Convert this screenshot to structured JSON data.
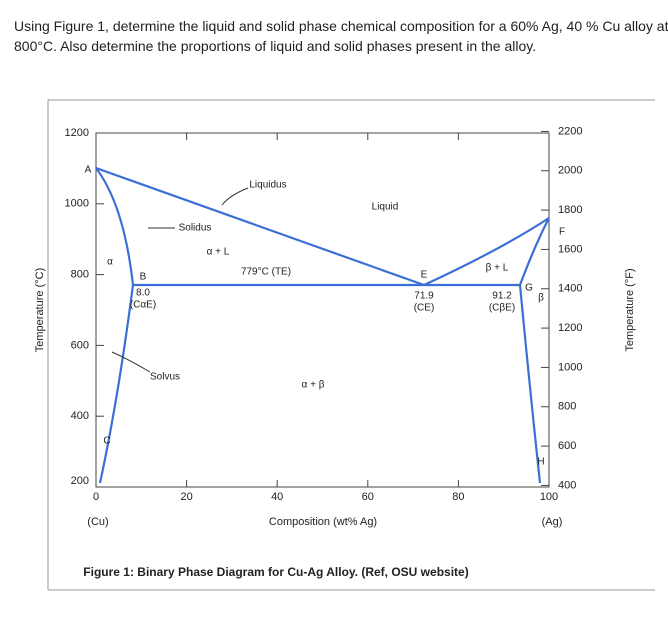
{
  "question": [
    "Using Figure 1, determine the liquid and solid phase chemical composition for a 60% Ag, 40 % Cu alloy at",
    "800°C. Also determine the proportions of liquid and solid phases present in the alloy."
  ],
  "figure": {
    "y_axis_label": "Temperature (°C)",
    "y2_axis_label": "Temperature (°F)",
    "x_axis_label": "Composition (wt% Ag)",
    "x_left_label": "(Cu)",
    "x_right_label": "(Ag)",
    "xticks": [
      0,
      20,
      40,
      60,
      80,
      100
    ],
    "yticks": [
      200,
      400,
      600,
      800,
      1000,
      1200
    ],
    "y2ticks": [
      400,
      600,
      800,
      1000,
      1200,
      1400,
      1600,
      1800,
      2000,
      2200
    ],
    "annotations": [
      "A",
      "Liquidus",
      "Liquid",
      "Solidus",
      "α + L",
      "α",
      "779°C (TE)",
      "B",
      "8.0",
      "(CαE)",
      "E",
      "71.9",
      "(CE)",
      "β + L",
      "F",
      "G",
      "β",
      "91.2",
      "(CβE)",
      "Solvus",
      "α + β",
      "C",
      "H"
    ],
    "caption": "Figure 1: Binary Phase Diagram for Cu-Ag Alloy. (Ref, OSU website)"
  }
}
